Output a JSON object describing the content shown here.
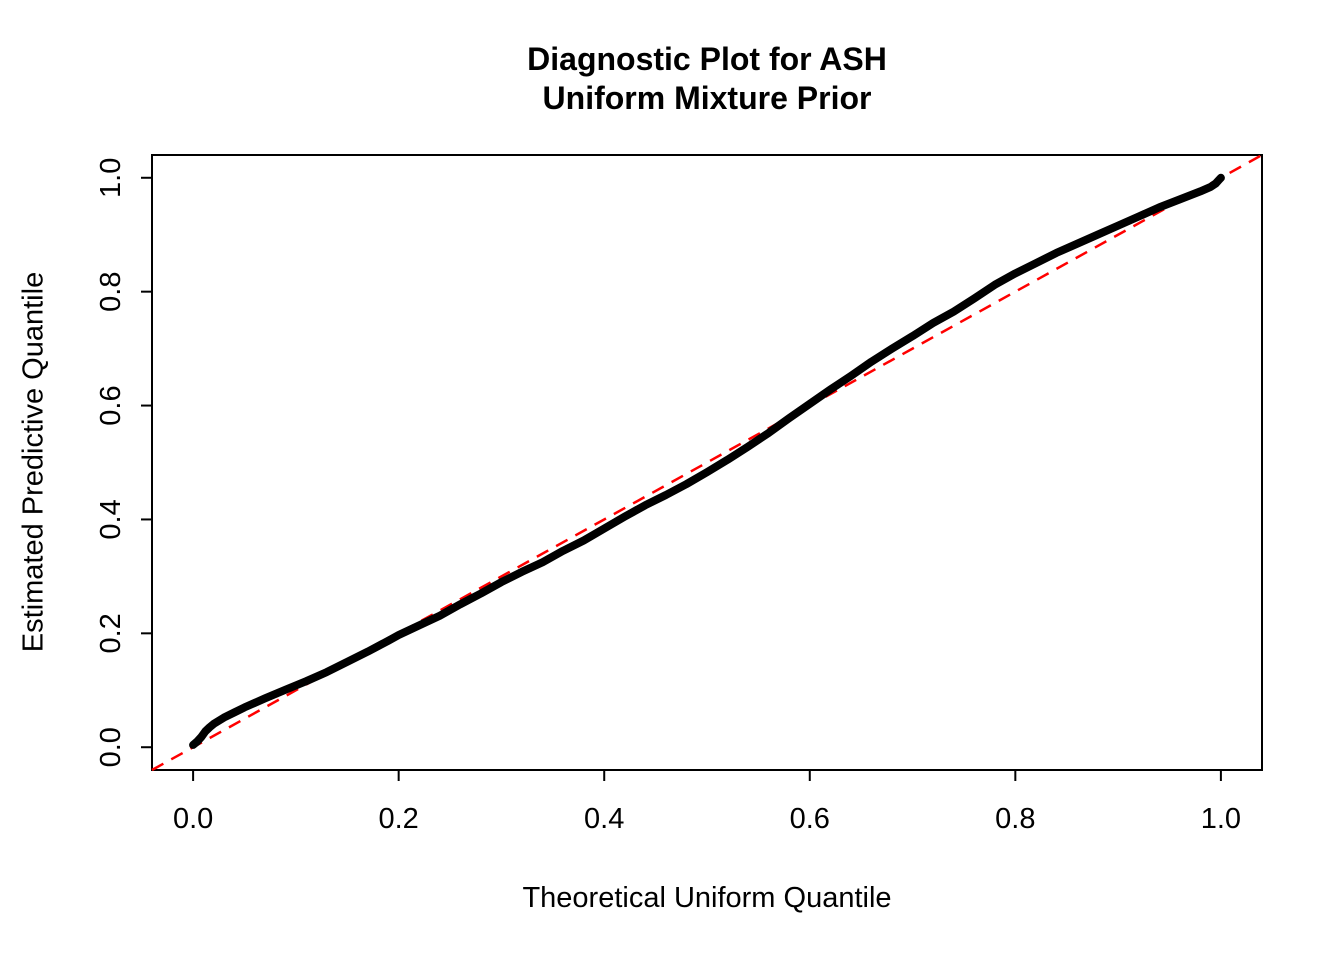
{
  "chart_data": {
    "type": "scatter",
    "title_line1": "Diagnostic Plot for ASH",
    "title_line2": "Uniform Mixture Prior",
    "xlabel": "Theoretical Uniform Quantile",
    "ylabel": "Estimated Predictive Quantile",
    "xlim": [
      -0.04,
      1.04
    ],
    "ylim": [
      -0.04,
      1.04
    ],
    "x_tick_labels": [
      "0.0",
      "0.2",
      "0.4",
      "0.6",
      "0.8",
      "1.0"
    ],
    "y_tick_labels": [
      "0.0",
      "0.2",
      "0.4",
      "0.6",
      "0.8",
      "1.0"
    ],
    "x_tick_values": [
      0,
      0.2,
      0.4,
      0.6,
      0.8,
      1.0
    ],
    "y_tick_values": [
      0,
      0.2,
      0.4,
      0.6,
      0.8,
      1.0
    ],
    "grid": false,
    "legend": "none",
    "colors": {
      "points": "#000000",
      "reference_line": "#FF0000",
      "box": "#000000"
    },
    "reference_line": {
      "name": "identity-line",
      "intercept": 0,
      "slope": 1,
      "style": "dashed"
    },
    "series": [
      {
        "name": "qq-curve",
        "points": [
          [
            0.0,
            0.004
          ],
          [
            0.004,
            0.01
          ],
          [
            0.008,
            0.018
          ],
          [
            0.012,
            0.028
          ],
          [
            0.016,
            0.035
          ],
          [
            0.02,
            0.041
          ],
          [
            0.03,
            0.052
          ],
          [
            0.04,
            0.061
          ],
          [
            0.05,
            0.07
          ],
          [
            0.07,
            0.086
          ],
          [
            0.09,
            0.101
          ],
          [
            0.11,
            0.116
          ],
          [
            0.13,
            0.132
          ],
          [
            0.15,
            0.15
          ],
          [
            0.17,
            0.168
          ],
          [
            0.19,
            0.187
          ],
          [
            0.2,
            0.197
          ],
          [
            0.22,
            0.214
          ],
          [
            0.24,
            0.231
          ],
          [
            0.26,
            0.251
          ],
          [
            0.28,
            0.27
          ],
          [
            0.3,
            0.29
          ],
          [
            0.32,
            0.308
          ],
          [
            0.34,
            0.325
          ],
          [
            0.36,
            0.345
          ],
          [
            0.38,
            0.363
          ],
          [
            0.4,
            0.384
          ],
          [
            0.42,
            0.405
          ],
          [
            0.44,
            0.425
          ],
          [
            0.46,
            0.443
          ],
          [
            0.48,
            0.462
          ],
          [
            0.5,
            0.483
          ],
          [
            0.52,
            0.505
          ],
          [
            0.54,
            0.528
          ],
          [
            0.56,
            0.552
          ],
          [
            0.58,
            0.578
          ],
          [
            0.6,
            0.603
          ],
          [
            0.62,
            0.628
          ],
          [
            0.64,
            0.652
          ],
          [
            0.66,
            0.677
          ],
          [
            0.68,
            0.7
          ],
          [
            0.7,
            0.722
          ],
          [
            0.72,
            0.745
          ],
          [
            0.74,
            0.765
          ],
          [
            0.76,
            0.788
          ],
          [
            0.78,
            0.812
          ],
          [
            0.8,
            0.832
          ],
          [
            0.82,
            0.85
          ],
          [
            0.84,
            0.868
          ],
          [
            0.86,
            0.884
          ],
          [
            0.88,
            0.9
          ],
          [
            0.9,
            0.916
          ],
          [
            0.92,
            0.932
          ],
          [
            0.94,
            0.948
          ],
          [
            0.96,
            0.962
          ],
          [
            0.98,
            0.976
          ],
          [
            0.99,
            0.984
          ],
          [
            0.995,
            0.99
          ],
          [
            0.998,
            0.996
          ],
          [
            1.0,
            1.0
          ]
        ]
      }
    ]
  }
}
